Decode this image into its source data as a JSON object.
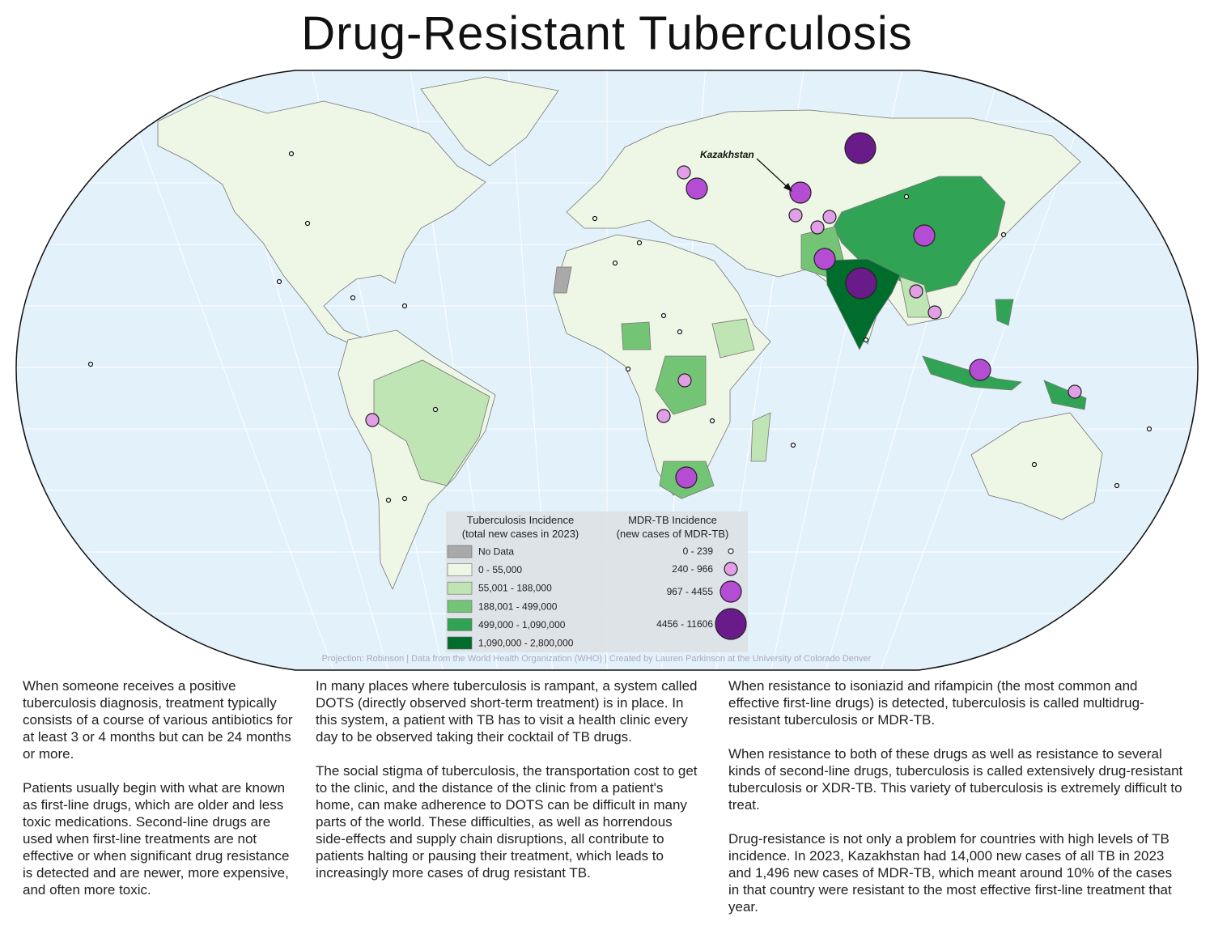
{
  "header": {
    "title": "Drug-Resistant Tuberculosis"
  },
  "map": {
    "annotation": "Kazakhstan",
    "credit": "Projection: Robinson | Data from the World Health Organization (WHO) | Created by Lauren Parkinson at the University of Colorado Denver",
    "legend_incidence": {
      "title": [
        "Tuberculosis Incidence",
        "(total new cases in 2023)"
      ],
      "classes": [
        {
          "label": "No Data",
          "color": "#a9a9a9"
        },
        {
          "label": "0 - 55,000",
          "color": "#eef6e6"
        },
        {
          "label": "55,001 - 188,000",
          "color": "#bfe5b4"
        },
        {
          "label": "188,001 - 499,000",
          "color": "#74c476"
        },
        {
          "label": "499,000 - 1,090,000",
          "color": "#31a354"
        },
        {
          "label": "1,090,000 - 2,800,000",
          "color": "#006d2c"
        }
      ]
    },
    "legend_mdr": {
      "title": [
        "MDR-TB Incidence",
        "(new cases of MDR-TB)"
      ],
      "classes": [
        {
          "label": "0 - 239",
          "color": "#ffffff"
        },
        {
          "label": "240 - 966",
          "color": "#e39ee8"
        },
        {
          "label": "967 - 4455",
          "color": "#b44cd4"
        },
        {
          "label": "4456 - 11606",
          "color": "#6a1b8a"
        }
      ]
    }
  },
  "columns": [
    [
      "When someone receives a positive tuberculosis diagnosis, treatment typically consists of a course of various antibiotics for at least 3 or 4 months but can be 24 months or more.",
      "Patients usually begin with what are known as first-line drugs, which are older and less toxic medications. Second-line drugs are used when first-line treatments are not effective or when significant drug resistance is detected and are newer, more expensive, and often more toxic."
    ],
    [
      "In many places where tuberculosis is rampant, a system called DOTS (directly observed short-term treatment) is in place. In this system, a patient with TB has to visit a health clinic every day to be observed taking their cocktail of TB drugs.",
      "The social stigma of tuberculosis, the transportation cost to get to the clinic, and the distance of the clinic from a patient's home, can make adherence to DOTS can be difficult in many parts of the world. These difficulties, as well as horrendous side-effects and supply chain disruptions, all contribute to patients halting or pausing their treatment, which leads to increasingly more cases of drug resistant TB."
    ],
    [
      "When resistance to isoniazid and rifampicin (the most common and effective first-line drugs) is detected, tuberculosis is called multidrug-resistant tuberculosis or MDR-TB.",
      "When resistance to both of these drugs as well as resistance to several kinds of second-line drugs, tuberculosis is called extensively drug-resistant tuberculosis or XDR-TB. This variety of tuberculosis is extremely difficult to treat.",
      "Drug-resistance is not only a problem for countries with high levels of TB incidence. In 2023, Kazakhstan had 14,000 new cases of all TB in 2023 and 1,496 new cases of MDR-TB, which meant around 10% of the cases in that country were resistant to the most effective first-line treatment that year."
    ]
  ]
}
